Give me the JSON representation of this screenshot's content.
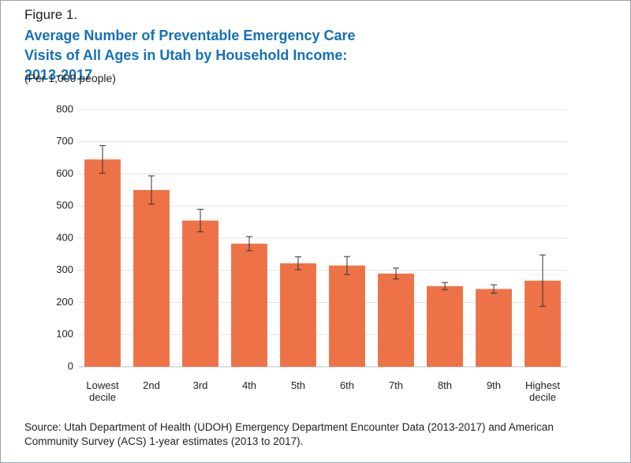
{
  "figure_label": "Figure 1.",
  "chart_data": {
    "type": "bar",
    "title": "Average Number of Preventable Emergency Care Visits of All Ages in Utah by Household Income: 2013-2017",
    "subtitle": "(Per 1,000 people)",
    "categories": [
      "Lowest decile",
      "2nd",
      "3rd",
      "4th",
      "5th",
      "6th",
      "7th",
      "8th",
      "9th",
      "Highest decile"
    ],
    "values": [
      645,
      550,
      455,
      383,
      322,
      315,
      290,
      251,
      242,
      268
    ],
    "errors": [
      43,
      44,
      35,
      22,
      20,
      28,
      17,
      11,
      13,
      80
    ],
    "color": "#ed7247",
    "ylim": [
      0,
      800
    ],
    "yticks": [
      0,
      100,
      200,
      300,
      400,
      500,
      600,
      700,
      800
    ],
    "grid": true
  },
  "source": "Source: Utah Department of Health (UDOH) Emergency Department Encounter Data (2013-2017) and American Community Survey (ACS) 1-year estimates (2013 to 2017)."
}
